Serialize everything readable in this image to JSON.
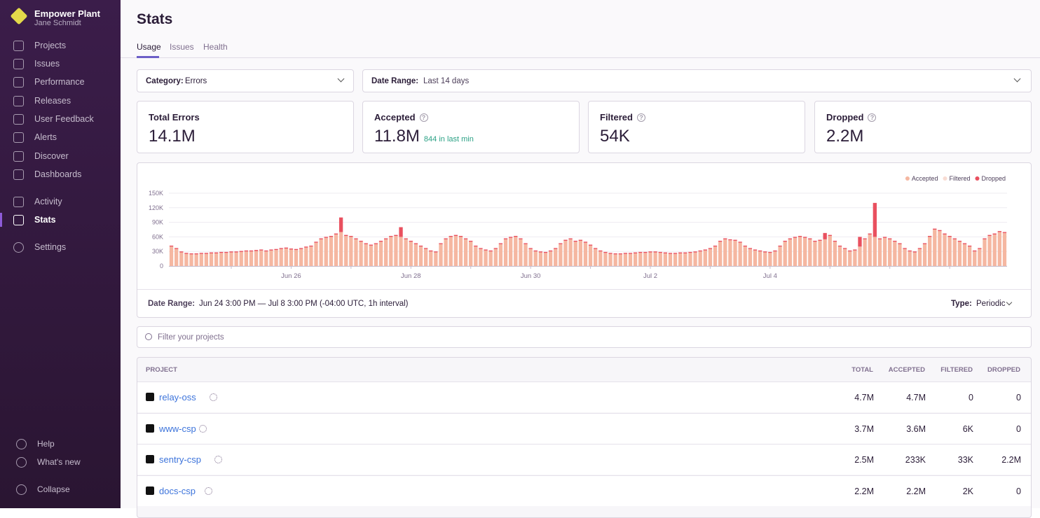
{
  "sidebar": {
    "org": "Empower Plant",
    "user": "Jane Schmidt",
    "nav": [
      "Projects",
      "Issues",
      "Performance",
      "Releases",
      "User Feedback",
      "Alerts",
      "Discover",
      "Dashboards"
    ],
    "nav2": [
      "Activity",
      "Stats"
    ],
    "settings": "Settings",
    "footer": [
      "Help",
      "What's new",
      "Collapse"
    ]
  },
  "header": {
    "title": "Stats",
    "tabs": [
      "Usage",
      "Issues",
      "Health"
    ]
  },
  "filters": {
    "category_label": "Category:",
    "category": "Errors",
    "date_label": "Date Range:",
    "date": "Last 14 days"
  },
  "cards": [
    {
      "title": "Total Errors",
      "value": "14.1M"
    },
    {
      "title": "Accepted",
      "value": "11.8M",
      "note": "844 in last min"
    },
    {
      "title": "Filtered",
      "value": "54K"
    },
    {
      "title": "Dropped",
      "value": "2.2M"
    }
  ],
  "chart_data": {
    "type": "bar",
    "stacked": true,
    "legend": "top-right",
    "categories": [
      null,
      null,
      null,
      null,
      null,
      null,
      null,
      null,
      null,
      null,
      null,
      null,
      null,
      null,
      null,
      null,
      null,
      null,
      null,
      null,
      null,
      null,
      null,
      null,
      "Jun 26",
      null,
      null,
      null,
      null,
      null,
      null,
      null,
      null,
      null,
      null,
      null,
      null,
      null,
      null,
      null,
      null,
      null,
      null,
      null,
      null,
      null,
      null,
      null,
      "Jun 28",
      null,
      null,
      null,
      null,
      null,
      null,
      null,
      null,
      null,
      null,
      null,
      null,
      null,
      null,
      null,
      null,
      null,
      null,
      null,
      null,
      null,
      null,
      null,
      "Jun 30",
      null,
      null,
      null,
      null,
      null,
      null,
      null,
      null,
      null,
      null,
      null,
      null,
      null,
      null,
      null,
      null,
      null,
      null,
      null,
      null,
      null,
      null,
      null,
      "Jul 2",
      null,
      null,
      null,
      null,
      null,
      null,
      null,
      null,
      null,
      null,
      null,
      null,
      null,
      null,
      null,
      null,
      null,
      null,
      null,
      null,
      null,
      null,
      null,
      "Jul 4",
      null,
      null,
      null,
      null,
      null,
      null,
      null,
      null,
      null,
      null,
      null,
      null,
      null,
      null,
      null,
      null,
      null,
      null,
      null,
      null,
      null,
      null,
      null,
      null,
      null,
      null,
      null,
      null,
      null,
      null,
      null,
      null,
      null,
      null,
      null,
      null,
      null,
      null,
      null,
      null,
      null,
      null,
      null,
      null,
      null,
      null,
      null
    ],
    "series": [
      {
        "name": "Accepted",
        "color": "#f5b7a1",
        "values": [
          40,
          35,
          28,
          25,
          24,
          24,
          25,
          25,
          26,
          26,
          27,
          27,
          28,
          28,
          29,
          30,
          30,
          31,
          32,
          30,
          32,
          33,
          35,
          36,
          34,
          33,
          35,
          38,
          40,
          48,
          55,
          58,
          60,
          65,
          70,
          62,
          60,
          55,
          50,
          45,
          42,
          45,
          50,
          55,
          60,
          62,
          60,
          55,
          50,
          45,
          40,
          35,
          30,
          28,
          45,
          55,
          60,
          62,
          60,
          55,
          50,
          40,
          35,
          32,
          30,
          35,
          45,
          55,
          58,
          60,
          55,
          45,
          35,
          30,
          28,
          27,
          30,
          35,
          45,
          52,
          55,
          50,
          52,
          48,
          42,
          35,
          30,
          27,
          25,
          24,
          24,
          25,
          25,
          26,
          27,
          27,
          28,
          28,
          27,
          26,
          25,
          25,
          26,
          26,
          27,
          28,
          30,
          32,
          35,
          40,
          50,
          55,
          53,
          52,
          48,
          40,
          35,
          32,
          30,
          28,
          27,
          30,
          40,
          50,
          55,
          58,
          60,
          58,
          55,
          50,
          52,
          55,
          62,
          50,
          40,
          35,
          30,
          32,
          40,
          55,
          65,
          60,
          55,
          58,
          55,
          50,
          45,
          35,
          30,
          28,
          35,
          45,
          60,
          75,
          72,
          65,
          60,
          55,
          50,
          45,
          40,
          30,
          35,
          55,
          62,
          65,
          70,
          68
        ]
      },
      {
        "name": "Filtered",
        "color": "#f8dcd3",
        "values": [
          0,
          0,
          0,
          0,
          0,
          0,
          0,
          0,
          0,
          0,
          0,
          0,
          0,
          0,
          0,
          0,
          0,
          0,
          0,
          0,
          0,
          0,
          0,
          0,
          0,
          0,
          0,
          0,
          0,
          0,
          0,
          0,
          0,
          0,
          0,
          0,
          0,
          0,
          0,
          0,
          0,
          0,
          0,
          0,
          0,
          0,
          0,
          0,
          0,
          0,
          0,
          0,
          0,
          0,
          0,
          0,
          0,
          0,
          0,
          0,
          0,
          0,
          0,
          0,
          0,
          0,
          0,
          0,
          0,
          0,
          0,
          0,
          0,
          0,
          0,
          0,
          0,
          0,
          0,
          0,
          0,
          0,
          0,
          0,
          0,
          0,
          0,
          0,
          0,
          0,
          0,
          0,
          0,
          0,
          0,
          0,
          0,
          0,
          0,
          0,
          0,
          0,
          0,
          0,
          0,
          0,
          0,
          0,
          0,
          0,
          0,
          0,
          0,
          0,
          0,
          0,
          0,
          0,
          0,
          0,
          0,
          0,
          0,
          0,
          0,
          0,
          0,
          0,
          0,
          0,
          0,
          0,
          0,
          0,
          0,
          0,
          0,
          0,
          0,
          0,
          0,
          0,
          0,
          0,
          0,
          0,
          0,
          0,
          0,
          0,
          0,
          0,
          0,
          0,
          0,
          0,
          0,
          0,
          0,
          0,
          0,
          0,
          0,
          0,
          0,
          0,
          0,
          0
        ]
      },
      {
        "name": "Dropped",
        "color": "#e9505f",
        "values": [
          2,
          2,
          2,
          2,
          2,
          2,
          2,
          2,
          2,
          2,
          2,
          2,
          2,
          2,
          2,
          2,
          2,
          2,
          2,
          2,
          2,
          2,
          2,
          2,
          2,
          2,
          2,
          2,
          2,
          2,
          2,
          2,
          2,
          2,
          30,
          2,
          2,
          2,
          2,
          2,
          2,
          2,
          2,
          2,
          2,
          2,
          20,
          2,
          2,
          2,
          2,
          2,
          2,
          2,
          2,
          2,
          2,
          2,
          2,
          2,
          2,
          2,
          2,
          2,
          2,
          2,
          2,
          2,
          2,
          2,
          2,
          2,
          2,
          2,
          2,
          2,
          2,
          2,
          2,
          2,
          2,
          2,
          2,
          2,
          2,
          2,
          2,
          2,
          2,
          2,
          2,
          2,
          2,
          2,
          2,
          2,
          2,
          2,
          2,
          2,
          2,
          2,
          2,
          2,
          2,
          2,
          2,
          2,
          2,
          2,
          2,
          2,
          2,
          2,
          2,
          2,
          2,
          2,
          2,
          2,
          2,
          2,
          2,
          2,
          2,
          2,
          2,
          2,
          2,
          2,
          2,
          13,
          2,
          2,
          2,
          2,
          2,
          2,
          20,
          2,
          2,
          70,
          2,
          2,
          2,
          2,
          2,
          2,
          2,
          2,
          2,
          2,
          2,
          2,
          2,
          2,
          2,
          2,
          2,
          2,
          2,
          2,
          2,
          2,
          2,
          2,
          2,
          2
        ]
      }
    ],
    "ylim": [
      0,
      150
    ],
    "yticks": [
      0,
      {
        "value": 30,
        "label": "30K"
      },
      {
        "value": 60,
        "label": "60K"
      },
      {
        "value": 90,
        "label": "90K"
      },
      {
        "value": 120,
        "label": "120K"
      },
      {
        "value": 150,
        "label": "150K"
      }
    ],
    "grid": true
  },
  "chart_footer": {
    "date_label": "Date Range:",
    "date": "Jun 24 3:00 PM — Jul 8 3:00 PM (-04:00 UTC, 1h interval)",
    "type_label": "Type:",
    "type": "Periodic"
  },
  "search": {
    "placeholder": "Filter your projects"
  },
  "table": {
    "columns": [
      "PROJECT",
      "TOTAL",
      "ACCEPTED",
      "FILTERED",
      "DROPPED"
    ],
    "rows": [
      [
        "relay-oss",
        "4.7M",
        "4.7M",
        "0",
        "0"
      ],
      [
        "www-csp",
        "3.7M",
        "3.6M",
        "6K",
        "0"
      ],
      [
        "sentry-csp",
        "2.5M",
        "233K",
        "33K",
        "2.2M"
      ],
      [
        "docs-csp",
        "2.2M",
        "2.2M",
        "2K",
        "0"
      ]
    ]
  }
}
